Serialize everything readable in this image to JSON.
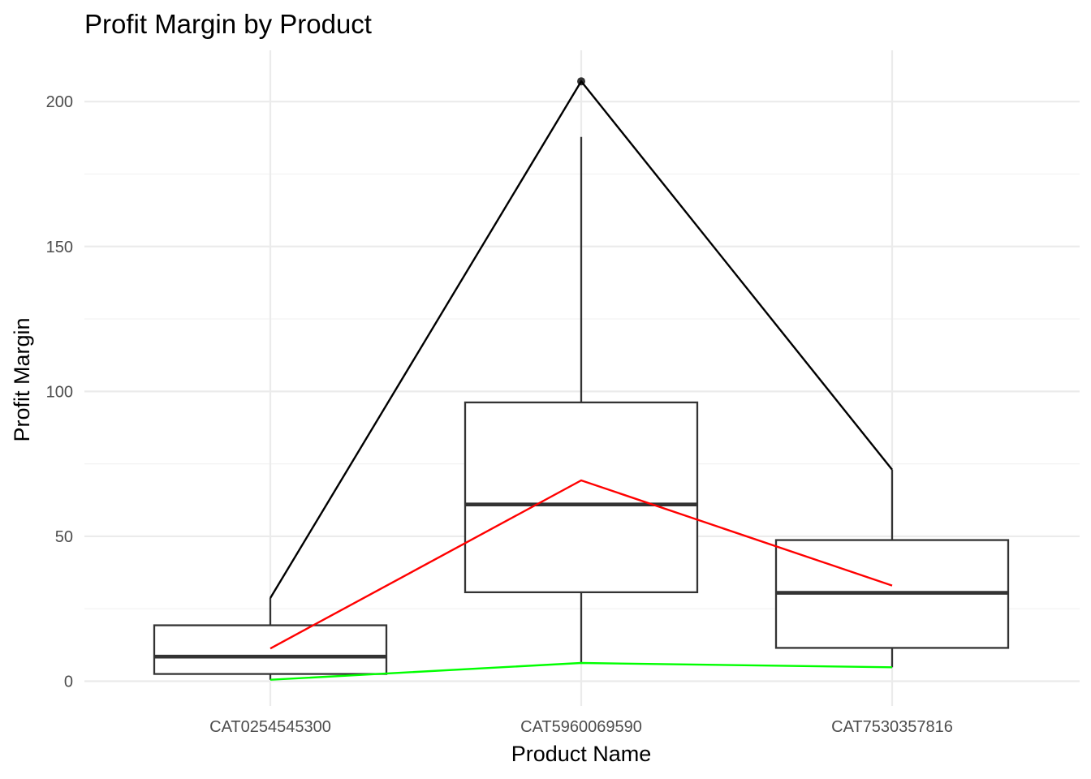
{
  "chart_data": {
    "type": "boxplot",
    "title": "Profit Margin by Product",
    "xlabel": "Product Name",
    "ylabel": "Profit Margin",
    "ylim": [
      -8,
      217
    ],
    "y_ticks": [
      0,
      50,
      100,
      150,
      200
    ],
    "y_minor_ticks": [
      25,
      75,
      125,
      175
    ],
    "grid": true,
    "legend": "none",
    "categories": [
      "CAT0254545300",
      "CAT5960069590",
      "CAT7530357816"
    ],
    "boxes": [
      {
        "category": "CAT0254545300",
        "lower_whisker": 0.5,
        "q1": 2.5,
        "median": 8.5,
        "q3": 19.3,
        "upper_whisker": 28.7,
        "outliers": []
      },
      {
        "category": "CAT5960069590",
        "lower_whisker": 6.3,
        "q1": 30.7,
        "median": 61.0,
        "q3": 96.2,
        "upper_whisker": 187.8,
        "outliers": [
          207.0
        ]
      },
      {
        "category": "CAT7530357816",
        "lower_whisker": 4.8,
        "q1": 11.5,
        "median": 30.5,
        "q3": 48.7,
        "upper_whisker": 73.0,
        "outliers": []
      }
    ],
    "series": [
      {
        "color": "#000000",
        "values": [
          28.7,
          207.0,
          73.0
        ]
      },
      {
        "color": "#ff0000",
        "values": [
          11.3,
          69.3,
          33.0
        ]
      },
      {
        "color": "#00ff00",
        "values": [
          0.5,
          6.3,
          4.8
        ]
      }
    ],
    "box_color": "#333333"
  }
}
